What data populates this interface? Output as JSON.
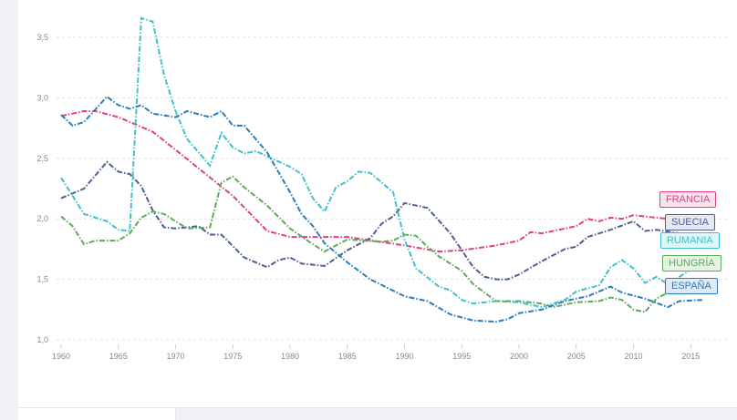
{
  "chart_data": {
    "type": "line",
    "title": "",
    "xlabel": "",
    "ylabel": "",
    "xlim": [
      1960,
      2016
    ],
    "ylim": [
      1.0,
      3.6
    ],
    "x_ticks": [
      "1960",
      "1965",
      "1970",
      "1975",
      "1980",
      "1985",
      "1990",
      "1995",
      "2000",
      "2005",
      "2010",
      "2015"
    ],
    "y_ticks": [
      "1,0",
      "1,5",
      "2,0",
      "2,5",
      "3,0",
      "3,5"
    ],
    "grid": true,
    "legend_placement": "right (labels at line ends)",
    "series": [
      {
        "name": "FRANCIA",
        "color": "#e0407f",
        "points": [
          [
            1960,
            2.85
          ],
          [
            1962,
            2.89
          ],
          [
            1963,
            2.89
          ],
          [
            1965,
            2.84
          ],
          [
            1968,
            2.72
          ],
          [
            1970,
            2.57
          ],
          [
            1975,
            2.19
          ],
          [
            1978,
            1.9
          ],
          [
            1980,
            1.85
          ],
          [
            1985,
            1.85
          ],
          [
            1990,
            1.78
          ],
          [
            1993,
            1.73
          ],
          [
            1995,
            1.74
          ],
          [
            1998,
            1.78
          ],
          [
            2000,
            1.82
          ],
          [
            2001,
            1.89
          ],
          [
            2002,
            1.88
          ],
          [
            2005,
            1.94
          ],
          [
            2006,
            2.0
          ],
          [
            2007,
            1.98
          ],
          [
            2008,
            2.01
          ],
          [
            2009,
            2.0
          ],
          [
            2010,
            2.03
          ],
          [
            2012,
            2.01
          ],
          [
            2014,
            1.99
          ]
        ]
      },
      {
        "name": "SUECIA",
        "color": "#4f5f91",
        "points": [
          [
            1960,
            2.17
          ],
          [
            1962,
            2.25
          ],
          [
            1964,
            2.47
          ],
          [
            1965,
            2.39
          ],
          [
            1966,
            2.37
          ],
          [
            1967,
            2.27
          ],
          [
            1968,
            2.07
          ],
          [
            1969,
            1.93
          ],
          [
            1970,
            1.92
          ],
          [
            1972,
            1.94
          ],
          [
            1973,
            1.87
          ],
          [
            1974,
            1.87
          ],
          [
            1976,
            1.68
          ],
          [
            1978,
            1.6
          ],
          [
            1979,
            1.66
          ],
          [
            1980,
            1.68
          ],
          [
            1981,
            1.63
          ],
          [
            1983,
            1.61
          ],
          [
            1985,
            1.74
          ],
          [
            1987,
            1.84
          ],
          [
            1988,
            1.96
          ],
          [
            1989,
            2.02
          ],
          [
            1990,
            2.13
          ],
          [
            1992,
            2.09
          ],
          [
            1994,
            1.88
          ],
          [
            1996,
            1.6
          ],
          [
            1997,
            1.52
          ],
          [
            1998,
            1.5
          ],
          [
            1999,
            1.5
          ],
          [
            2000,
            1.54
          ],
          [
            2002,
            1.65
          ],
          [
            2004,
            1.75
          ],
          [
            2005,
            1.77
          ],
          [
            2006,
            1.85
          ],
          [
            2008,
            1.91
          ],
          [
            2010,
            1.98
          ],
          [
            2011,
            1.9
          ],
          [
            2012,
            1.91
          ],
          [
            2014,
            1.88
          ]
        ]
      },
      {
        "name": "RUMANIA",
        "color": "#3fc1c9",
        "points": [
          [
            1960,
            2.34
          ],
          [
            1962,
            2.04
          ],
          [
            1964,
            1.98
          ],
          [
            1965,
            1.91
          ],
          [
            1966,
            1.9
          ],
          [
            1967,
            3.66
          ],
          [
            1968,
            3.63
          ],
          [
            1969,
            3.19
          ],
          [
            1970,
            2.89
          ],
          [
            1971,
            2.66
          ],
          [
            1973,
            2.44
          ],
          [
            1974,
            2.71
          ],
          [
            1975,
            2.59
          ],
          [
            1976,
            2.54
          ],
          [
            1977,
            2.56
          ],
          [
            1980,
            2.43
          ],
          [
            1981,
            2.37
          ],
          [
            1982,
            2.17
          ],
          [
            1983,
            2.06
          ],
          [
            1984,
            2.26
          ],
          [
            1985,
            2.31
          ],
          [
            1986,
            2.39
          ],
          [
            1987,
            2.38
          ],
          [
            1989,
            2.22
          ],
          [
            1990,
            1.83
          ],
          [
            1991,
            1.59
          ],
          [
            1993,
            1.44
          ],
          [
            1994,
            1.41
          ],
          [
            1995,
            1.33
          ],
          [
            1996,
            1.3
          ],
          [
            1998,
            1.32
          ],
          [
            2000,
            1.31
          ],
          [
            2002,
            1.27
          ],
          [
            2004,
            1.33
          ],
          [
            2005,
            1.4
          ],
          [
            2007,
            1.45
          ],
          [
            2008,
            1.6
          ],
          [
            2009,
            1.66
          ],
          [
            2010,
            1.59
          ],
          [
            2011,
            1.47
          ],
          [
            2012,
            1.52
          ],
          [
            2013,
            1.46
          ],
          [
            2015,
            1.58
          ]
        ]
      },
      {
        "name": "HUNGRÍA",
        "color": "#5caa5c",
        "points": [
          [
            1960,
            2.02
          ],
          [
            1961,
            1.94
          ],
          [
            1962,
            1.79
          ],
          [
            1963,
            1.82
          ],
          [
            1965,
            1.82
          ],
          [
            1966,
            1.88
          ],
          [
            1967,
            2.01
          ],
          [
            1968,
            2.06
          ],
          [
            1969,
            2.04
          ],
          [
            1970,
            1.98
          ],
          [
            1971,
            1.92
          ],
          [
            1973,
            1.93
          ],
          [
            1974,
            2.3
          ],
          [
            1975,
            2.35
          ],
          [
            1976,
            2.26
          ],
          [
            1978,
            2.11
          ],
          [
            1980,
            1.92
          ],
          [
            1982,
            1.79
          ],
          [
            1983,
            1.73
          ],
          [
            1985,
            1.83
          ],
          [
            1988,
            1.81
          ],
          [
            1989,
            1.82
          ],
          [
            1990,
            1.87
          ],
          [
            1991,
            1.86
          ],
          [
            1992,
            1.77
          ],
          [
            1993,
            1.69
          ],
          [
            1995,
            1.57
          ],
          [
            1996,
            1.46
          ],
          [
            1998,
            1.32
          ],
          [
            2000,
            1.32
          ],
          [
            2002,
            1.3
          ],
          [
            2003,
            1.27
          ],
          [
            2005,
            1.31
          ],
          [
            2007,
            1.32
          ],
          [
            2008,
            1.35
          ],
          [
            2009,
            1.33
          ],
          [
            2010,
            1.25
          ],
          [
            2011,
            1.23
          ],
          [
            2012,
            1.34
          ],
          [
            2014,
            1.44
          ]
        ]
      },
      {
        "name": "ESPAÑA",
        "color": "#2d7cb9",
        "points": [
          [
            1960,
            2.86
          ],
          [
            1961,
            2.77
          ],
          [
            1962,
            2.8
          ],
          [
            1964,
            3.01
          ],
          [
            1965,
            2.94
          ],
          [
            1966,
            2.91
          ],
          [
            1967,
            2.94
          ],
          [
            1968,
            2.87
          ],
          [
            1970,
            2.84
          ],
          [
            1971,
            2.89
          ],
          [
            1973,
            2.84
          ],
          [
            1974,
            2.89
          ],
          [
            1975,
            2.77
          ],
          [
            1976,
            2.77
          ],
          [
            1978,
            2.55
          ],
          [
            1980,
            2.22
          ],
          [
            1981,
            2.04
          ],
          [
            1982,
            1.94
          ],
          [
            1983,
            1.8
          ],
          [
            1985,
            1.64
          ],
          [
            1987,
            1.5
          ],
          [
            1990,
            1.36
          ],
          [
            1992,
            1.32
          ],
          [
            1994,
            1.21
          ],
          [
            1996,
            1.16
          ],
          [
            1998,
            1.15
          ],
          [
            1999,
            1.17
          ],
          [
            2000,
            1.22
          ],
          [
            2002,
            1.25
          ],
          [
            2004,
            1.32
          ],
          [
            2006,
            1.36
          ],
          [
            2008,
            1.44
          ],
          [
            2009,
            1.39
          ],
          [
            2011,
            1.34
          ],
          [
            2013,
            1.27
          ],
          [
            2014,
            1.32
          ],
          [
            2016,
            1.33
          ]
        ]
      }
    ]
  }
}
